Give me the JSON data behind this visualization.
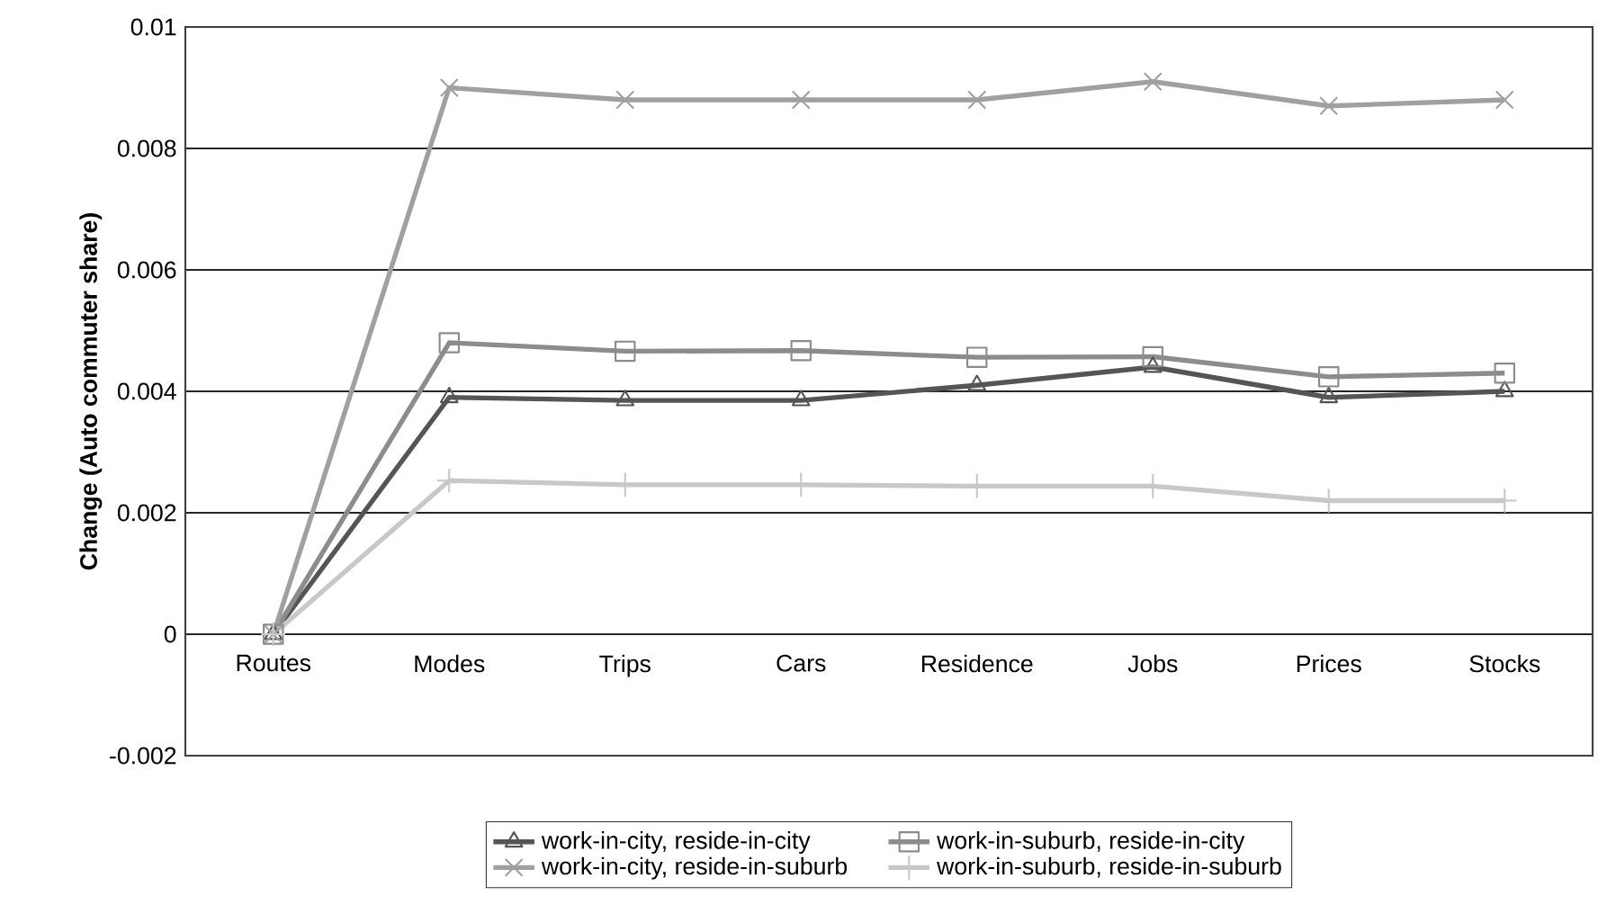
{
  "chart_data": {
    "type": "line",
    "ylabel": "Change (Auto commuter share)",
    "categories": [
      "Routes",
      "Modes",
      "Trips",
      "Cars",
      "Residence",
      "Jobs",
      "Prices",
      "Stocks"
    ],
    "series": [
      {
        "name": "work-in-city, reside-in-city",
        "color": "#555555",
        "marker": "triangle",
        "values": [
          0,
          0.0039,
          0.00385,
          0.00385,
          0.0041,
          0.0044,
          0.0039,
          0.004
        ]
      },
      {
        "name": "work-in-suburb, reside-in-city",
        "color": "#8c8c8c",
        "marker": "square",
        "values": [
          0,
          0.0048,
          0.00466,
          0.00467,
          0.00456,
          0.00457,
          0.00424,
          0.0043
        ]
      },
      {
        "name": "work-in-city, reside-in-suburb",
        "color": "#a0a0a4",
        "marker": "cross",
        "values": [
          0,
          0.009,
          0.0088,
          0.0088,
          0.0088,
          0.0091,
          0.0087,
          0.0088
        ]
      },
      {
        "name": "work-in-suburb, reside-in-suburb",
        "color": "#c8c8c8",
        "marker": "plus",
        "values": [
          0,
          0.00253,
          0.00246,
          0.00246,
          0.00244,
          0.00244,
          0.0022,
          0.0022
        ]
      }
    ],
    "ylim": [
      -0.002,
      0.01
    ],
    "yticks": [
      -0.002,
      0,
      0.002,
      0.004,
      0.006,
      0.008,
      0.01
    ],
    "grid": "y",
    "legend": "bottom",
    "line_style": "solid"
  }
}
